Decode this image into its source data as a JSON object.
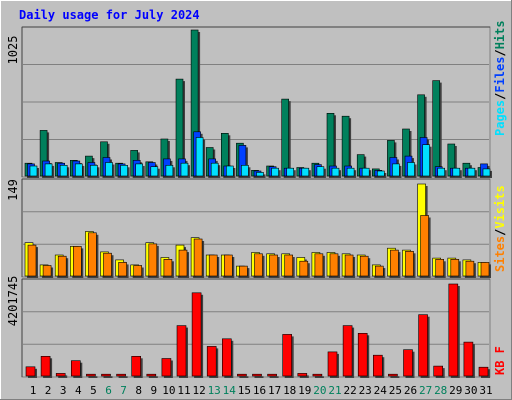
{
  "title": "Daily usage for July 2024",
  "colors": {
    "background": "#c0c0c0",
    "hits": "#00805c",
    "files": "#0040ff",
    "pages": "#00e0ff",
    "visits": "#ffff00",
    "sites": "#ff8000",
    "kbytes": "#ff0000",
    "title": "#0000ff",
    "weekend_day": "#00805c",
    "weekday_day": "#000000"
  },
  "chart_data": [
    {
      "type": "bar",
      "name": "hits-files-pages",
      "ymax_label": "1025",
      "legend": [
        "Hits",
        "/",
        "Files",
        "/",
        "Pages"
      ],
      "ylim": [
        0,
        1025
      ],
      "categories": [
        "1",
        "2",
        "3",
        "4",
        "5",
        "6",
        "7",
        "8",
        "9",
        "10",
        "11",
        "12",
        "13",
        "14",
        "15",
        "16",
        "17",
        "18",
        "19",
        "20",
        "21",
        "22",
        "23",
        "24",
        "25",
        "26",
        "27",
        "28",
        "29",
        "30",
        "31"
      ],
      "series": [
        {
          "name": "Hits",
          "values": [
            90,
            320,
            95,
            110,
            140,
            240,
            90,
            180,
            100,
            260,
            680,
            1025,
            200,
            300,
            230,
            40,
            70,
            540,
            60,
            90,
            440,
            420,
            150,
            50,
            250,
            330,
            570,
            670,
            225,
            90,
            60
          ]
        },
        {
          "name": "Files",
          "values": [
            85,
            105,
            90,
            105,
            95,
            130,
            85,
            110,
            95,
            120,
            120,
            310,
            120,
            70,
            215,
            35,
            65,
            55,
            55,
            80,
            70,
            70,
            55,
            40,
            130,
            140,
            270,
            65,
            55,
            55,
            85
          ]
        },
        {
          "name": "Pages",
          "values": [
            70,
            85,
            75,
            85,
            75,
            95,
            75,
            85,
            65,
            75,
            90,
            270,
            90,
            70,
            75,
            25,
            55,
            55,
            55,
            65,
            55,
            55,
            55,
            35,
            85,
            95,
            220,
            55,
            55,
            55,
            50
          ]
        }
      ]
    },
    {
      "type": "bar",
      "name": "visits-sites",
      "ymax_label": "149",
      "legend": [
        "Visits",
        "/",
        "Sites"
      ],
      "ylim": [
        0,
        149
      ],
      "categories": [
        "1",
        "2",
        "3",
        "4",
        "5",
        "6",
        "7",
        "8",
        "9",
        "10",
        "11",
        "12",
        "13",
        "14",
        "15",
        "16",
        "17",
        "18",
        "19",
        "20",
        "21",
        "22",
        "23",
        "24",
        "25",
        "26",
        "27",
        "28",
        "29",
        "30",
        "31"
      ],
      "series": [
        {
          "name": "Visits",
          "values": [
            54,
            18,
            34,
            48,
            72,
            39,
            26,
            18,
            54,
            30,
            50,
            62,
            34,
            34,
            16,
            38,
            36,
            36,
            30,
            38,
            38,
            36,
            34,
            18,
            45,
            42,
            149,
            29,
            29,
            26,
            22
          ]
        },
        {
          "name": "Sites",
          "values": [
            50,
            17,
            32,
            48,
            70,
            37,
            22,
            17,
            52,
            27,
            42,
            60,
            34,
            34,
            16,
            36,
            34,
            34,
            24,
            36,
            36,
            34,
            32,
            16,
            42,
            40,
            98,
            27,
            27,
            24,
            22
          ]
        }
      ]
    },
    {
      "type": "bar",
      "name": "kbytes",
      "ymax_label": "4201745",
      "legend": [
        "KB F"
      ],
      "ylim": [
        0,
        4201745
      ],
      "categories": [
        "1",
        "2",
        "3",
        "4",
        "5",
        "6",
        "7",
        "8",
        "9",
        "10",
        "11",
        "12",
        "13",
        "14",
        "15",
        "16",
        "17",
        "18",
        "19",
        "20",
        "21",
        "22",
        "23",
        "24",
        "25",
        "26",
        "27",
        "28",
        "29",
        "30",
        "31"
      ],
      "series": [
        {
          "name": "KB F",
          "values": [
            420000,
            900000,
            120000,
            700000,
            80000,
            80000,
            80000,
            900000,
            80000,
            800000,
            2300000,
            3800000,
            1350000,
            1700000,
            80000,
            80000,
            80000,
            1900000,
            120000,
            80000,
            1100000,
            2300000,
            1950000,
            950000,
            80000,
            1200000,
            2800000,
            450000,
            4201745,
            1550000,
            400000
          ]
        }
      ]
    }
  ],
  "x_labels": {
    "days": [
      "1",
      "2",
      "3",
      "4",
      "5",
      "6",
      "7",
      "8",
      "9",
      "10",
      "11",
      "12",
      "13",
      "14",
      "15",
      "16",
      "17",
      "18",
      "19",
      "20",
      "21",
      "22",
      "23",
      "24",
      "25",
      "26",
      "27",
      "28",
      "29",
      "30",
      "31"
    ],
    "weekend": [
      6,
      7,
      13,
      14,
      20,
      21,
      27,
      28
    ]
  }
}
